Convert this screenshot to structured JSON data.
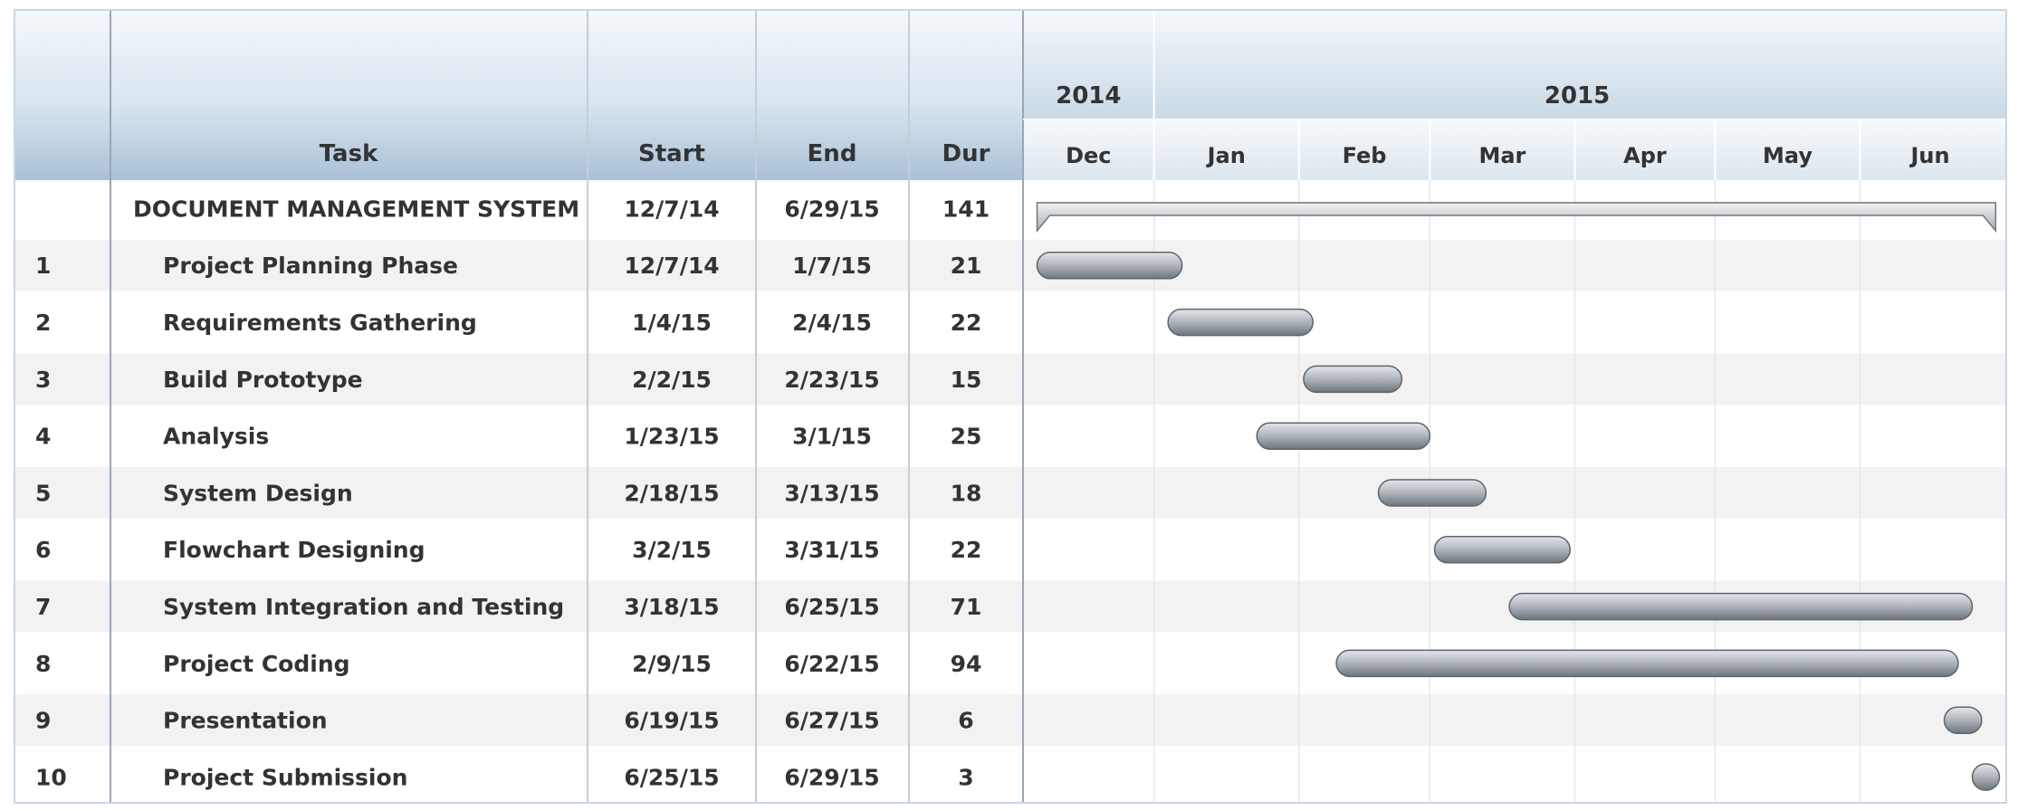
{
  "columns": {
    "num": "",
    "task": "Task",
    "start": "Start",
    "end": "End",
    "dur": "Dur"
  },
  "timeline": {
    "years": [
      {
        "label": "2014",
        "from": "2014-11-15",
        "to": "2015-01-01"
      },
      {
        "label": "2015",
        "from": "2015-01-01",
        "to": "2015-07-01"
      }
    ],
    "months": [
      "Dec",
      "Jan",
      "Feb",
      "Mar",
      "Apr",
      "May",
      "Jun"
    ]
  },
  "chart_data": {
    "type": "gantt",
    "title": "",
    "summary": {
      "name": "DOCUMENT MANAGEMENT SYSTEM",
      "start": "12/7/14",
      "end": "6/29/15",
      "dur": "141"
    },
    "tasks": [
      {
        "id": "1",
        "name": "Project Planning Phase",
        "start": "12/7/14",
        "end": "1/7/15",
        "dur": "21"
      },
      {
        "id": "2",
        "name": "Requirements Gathering",
        "start": "1/4/15",
        "end": "2/4/15",
        "dur": "22"
      },
      {
        "id": "3",
        "name": "Build Prototype",
        "start": "2/2/15",
        "end": "2/23/15",
        "dur": "15"
      },
      {
        "id": "4",
        "name": "Analysis",
        "start": "1/23/15",
        "end": "3/1/15",
        "dur": "25"
      },
      {
        "id": "5",
        "name": "System Design",
        "start": "2/18/15",
        "end": "3/13/15",
        "dur": "18"
      },
      {
        "id": "6",
        "name": "Flowchart Designing",
        "start": "3/2/15",
        "end": "3/31/15",
        "dur": "22"
      },
      {
        "id": "7",
        "name": "System Integration and Testing",
        "start": "3/18/15",
        "end": "6/25/15",
        "dur": "71"
      },
      {
        "id": "8",
        "name": "Project Coding",
        "start": "2/9/15",
        "end": "6/22/15",
        "dur": "94"
      },
      {
        "id": "9",
        "name": "Presentation",
        "start": "6/19/15",
        "end": "6/27/15",
        "dur": "6"
      },
      {
        "id": "10",
        "name": "Project Submission",
        "start": "6/25/15",
        "end": "6/29/15",
        "dur": "3"
      }
    ],
    "colors": {
      "bar": "#8e959c",
      "header": "#a9c1d6",
      "band": "#f2f2f2"
    }
  }
}
